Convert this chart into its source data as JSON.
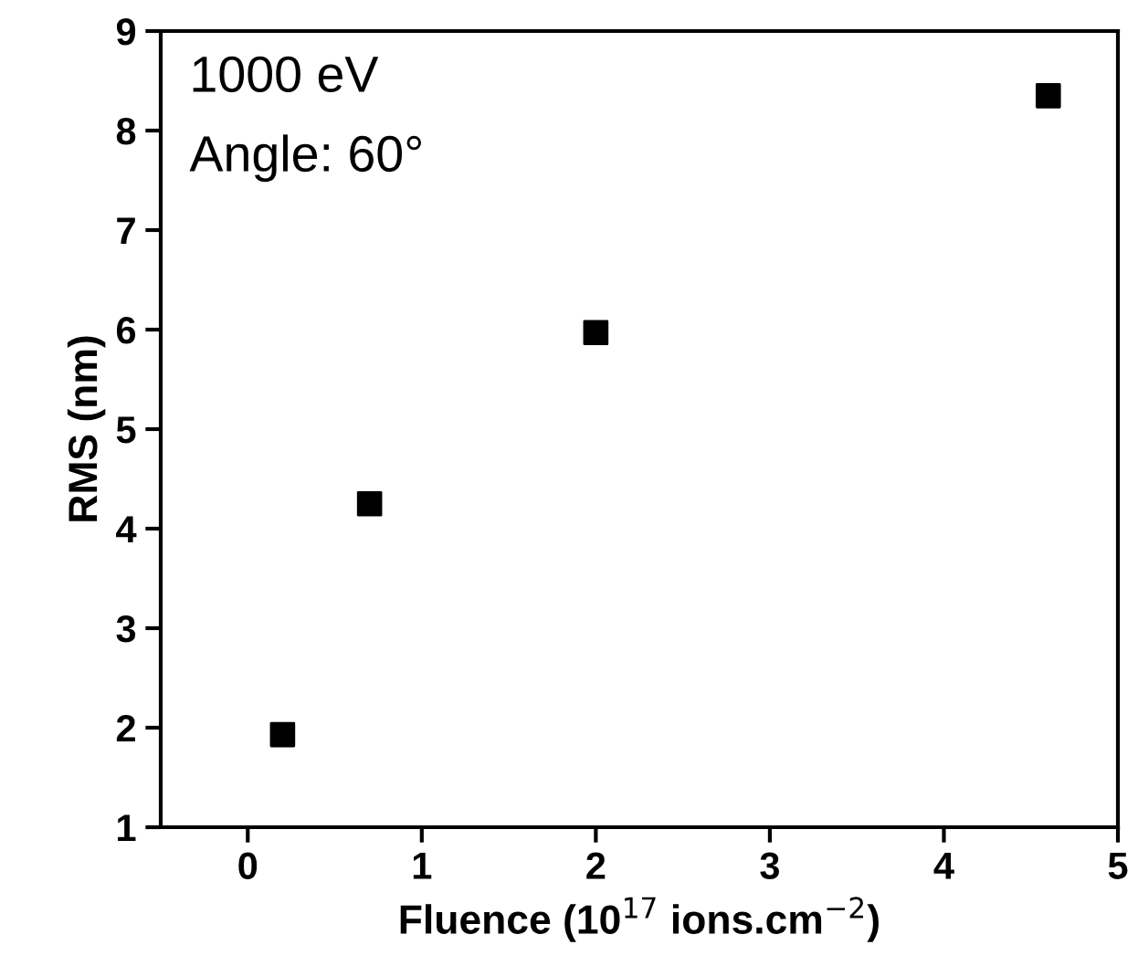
{
  "chart_data": {
    "type": "scatter",
    "xlabel": "Fluence (10$^{17}$ ions.cm$^{−2}$)",
    "ylabel": "RMS (nm)",
    "annotations": [
      "1000 eV",
      "Angle: 60°"
    ],
    "x": [
      0.2,
      0.7,
      2.0,
      4.6
    ],
    "series": [
      {
        "color": "#000000",
        "values": [
          1.93,
          4.25,
          5.97,
          8.35
        ]
      }
    ],
    "marker": "square",
    "xlim": [
      -0.5,
      5
    ],
    "ylim": [
      1,
      9
    ],
    "xticks": [
      0,
      1,
      2,
      3,
      4,
      5
    ],
    "yticks": [
      1,
      2,
      3,
      4,
      5,
      6,
      7,
      8,
      9
    ],
    "grid": false,
    "legend": false
  }
}
